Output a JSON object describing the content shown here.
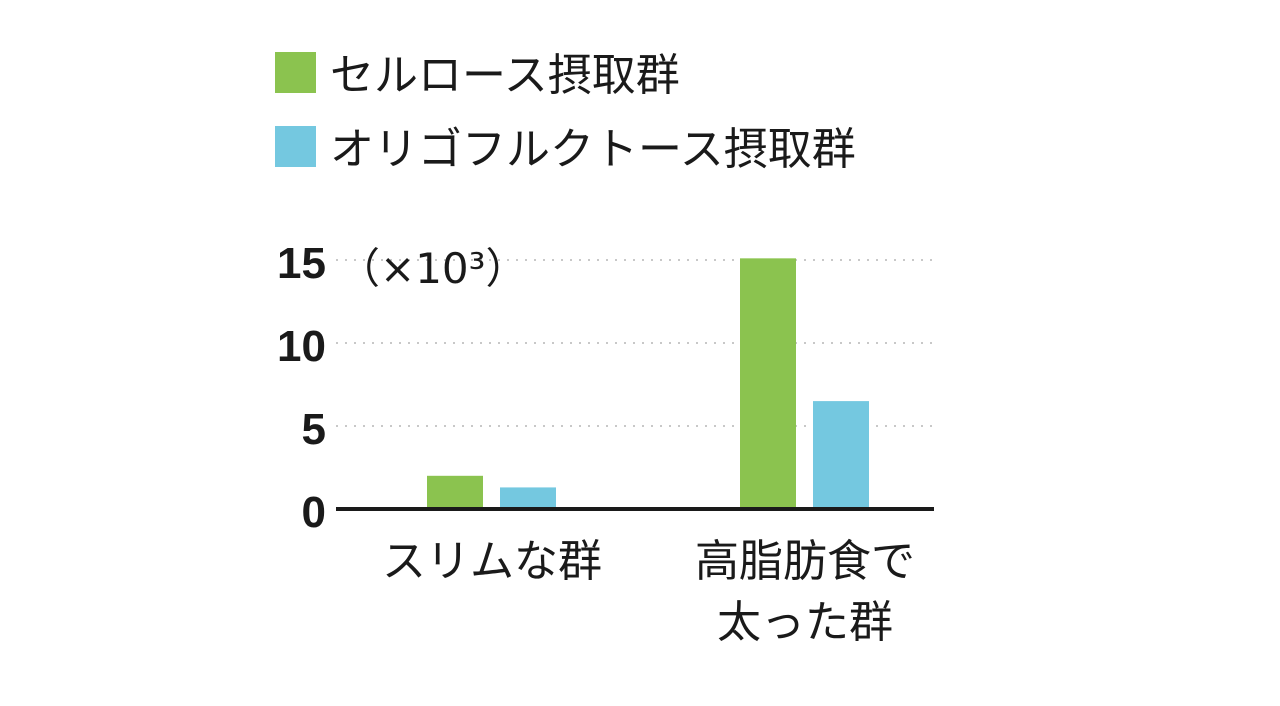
{
  "chart_data": {
    "type": "bar",
    "categories": [
      [
        "スリムな群"
      ],
      [
        "高脂肪食で",
        "太った群"
      ]
    ],
    "series": [
      {
        "name": "セルロース摂取群",
        "color": "#8bc34f",
        "values": [
          2.0,
          15.1
        ]
      },
      {
        "name": "オリゴフルクトース摂取群",
        "color": "#74c8e0",
        "values": [
          1.3,
          6.5
        ]
      }
    ],
    "yticks": [
      "0",
      "5",
      "10",
      "15"
    ],
    "ylim": [
      0,
      15
    ],
    "y_unit": "（×10³）",
    "grid": true,
    "legend_position": "top-left"
  }
}
